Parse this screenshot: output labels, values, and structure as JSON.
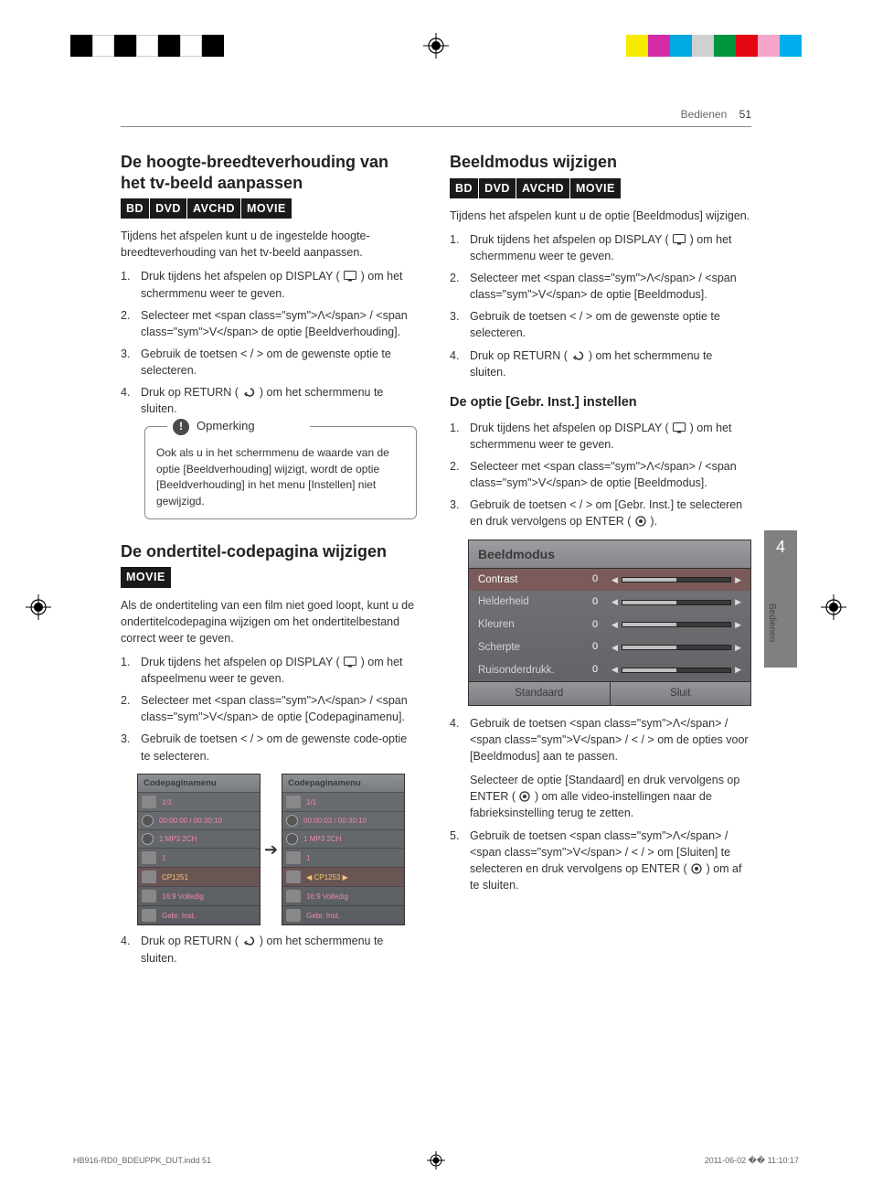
{
  "print_marks": {
    "left_colors": [
      "#000000",
      "#ffffff",
      "#000000",
      "#ffffff",
      "#000000",
      "#ffffff",
      "#000000"
    ],
    "right_colors": [
      "#f7ea00",
      "#d62ba6",
      "#00a9e0",
      "#d0d0d0",
      "#009640",
      "#e30613",
      "#f5a6c9",
      "#00aeef"
    ]
  },
  "header": {
    "section": "Bedienen",
    "page": "51"
  },
  "left": {
    "h1": "De hoogte-breedteverhouding van het tv-beeld aanpassen",
    "badges1": [
      "BD",
      "DVD",
      "AVCHD",
      "MOVIE"
    ],
    "intro1": "Tijdens het afspelen kunt u de ingestelde hoogte-breedteverhouding van het tv-beeld aanpassen.",
    "steps1": [
      "Druk tijdens het afspelen op DISPLAY ( 🖵 ) om het schermmenu weer te geven.",
      "Selecteer met Λ / V de optie [Beeldverhouding].",
      "Gebruik de toetsen < / > om de gewenste optie te selecteren.",
      "Druk op RETURN ( ↩ ) om het schermmenu te sluiten."
    ],
    "note_title": "Opmerking",
    "note_body": "Ook als u in het schermmenu de waarde van de optie [Beeldverhouding] wijzigt, wordt de optie [Beeldverhouding] in het menu [Instellen] niet gewijzigd.",
    "h2": "De ondertitel-codepagina wijzigen",
    "badges2": [
      "MOVIE"
    ],
    "intro2": "Als de ondertiteling van een film niet goed loopt, kunt u de ondertitelcodepagina wijzigen om het ondertitelbestand correct weer te geven.",
    "steps2": [
      "Druk tijdens het afspelen op DISPLAY ( 🖵 ) om het afspeelmenu weer te geven.",
      "Selecteer met Λ / V de optie [Codepaginamenu].",
      "Gebruik de toetsen < / > om de gewenste code-optie te selecteren."
    ],
    "cp_title": "Codepaginamenu",
    "cp_rows_a": [
      {
        "v": "1/1"
      },
      {
        "v": "00:00:00 / 00:30:10"
      },
      {
        "v": "1\nMP3\n2CH",
        "multi": true
      },
      {
        "v": "1"
      },
      {
        "v": "CP1251",
        "hl": true
      },
      {
        "v": "16:9 Volledig"
      },
      {
        "v": "Gebr. Inst."
      }
    ],
    "cp_rows_b": [
      {
        "v": "1/1"
      },
      {
        "v": "00:00:03 / 00:30:10"
      },
      {
        "v": "1\nMP3\n2CH",
        "multi": true
      },
      {
        "v": "1"
      },
      {
        "v": "◀ CP1253    ▶",
        "hl": true
      },
      {
        "v": "16:9 Volledig"
      },
      {
        "v": "Gebr. Inst."
      }
    ],
    "step4": "Druk op RETURN ( ↩ ) om het schermmenu te sluiten."
  },
  "right": {
    "h1": "Beeldmodus wijzigen",
    "badges1": [
      "BD",
      "DVD",
      "AVCHD",
      "MOVIE"
    ],
    "intro1": "Tijdens het afspelen kunt u de optie [Beeldmodus] wijzigen.",
    "steps1": [
      "Druk tijdens het afspelen op DISPLAY ( 🖵 ) om het schermmenu weer te geven.",
      "Selecteer met Λ / V de optie [Beeldmodus].",
      "Gebruik de toetsen < / > om de gewenste optie te selecteren.",
      "Druk op RETURN ( ↩ ) om het schermmenu te sluiten."
    ],
    "sub": "De optie [Gebr. Inst.] instellen",
    "steps2": [
      "Druk tijdens het afspelen op DISPLAY ( 🖵 ) om het schermmenu weer te geven.",
      "Selecteer met Λ / V de optie [Beeldmodus].",
      "Gebruik de toetsen < / > om [Gebr. Inst.] te selecteren en druk vervolgens op ENTER ( ◉ )."
    ],
    "panel": {
      "title": "Beeldmodus",
      "rows": [
        {
          "label": "Contrast",
          "val": "0",
          "sel": true
        },
        {
          "label": "Helderheid",
          "val": "0"
        },
        {
          "label": "Kleuren",
          "val": "0"
        },
        {
          "label": "Scherpte",
          "val": "0"
        },
        {
          "label": "Ruisonderdrukk.",
          "val": "0"
        }
      ],
      "footer": [
        "Standaard",
        "Sluit"
      ]
    },
    "steps3": [
      "Gebruik de toetsen Λ / V / < / > om de opties voor [Beeldmodus] aan te passen.",
      "Gebruik de toetsen Λ / V / < / > om [Sluiten] te selecteren en druk vervolgens op ENTER ( ◉ ) om af te sluiten."
    ],
    "mid_para": "Selecteer de optie [Standaard] en druk vervolgens op ENTER ( ◉ ) om alle video-instellingen naar de fabrieksinstelling terug te zetten."
  },
  "side_tab": {
    "num": "4",
    "label": "Bedienen"
  },
  "footer": {
    "file": "HB916-RD0_BDEUPPK_DUT.indd   51",
    "time": "2011-06-02   �� 11:10:17"
  }
}
